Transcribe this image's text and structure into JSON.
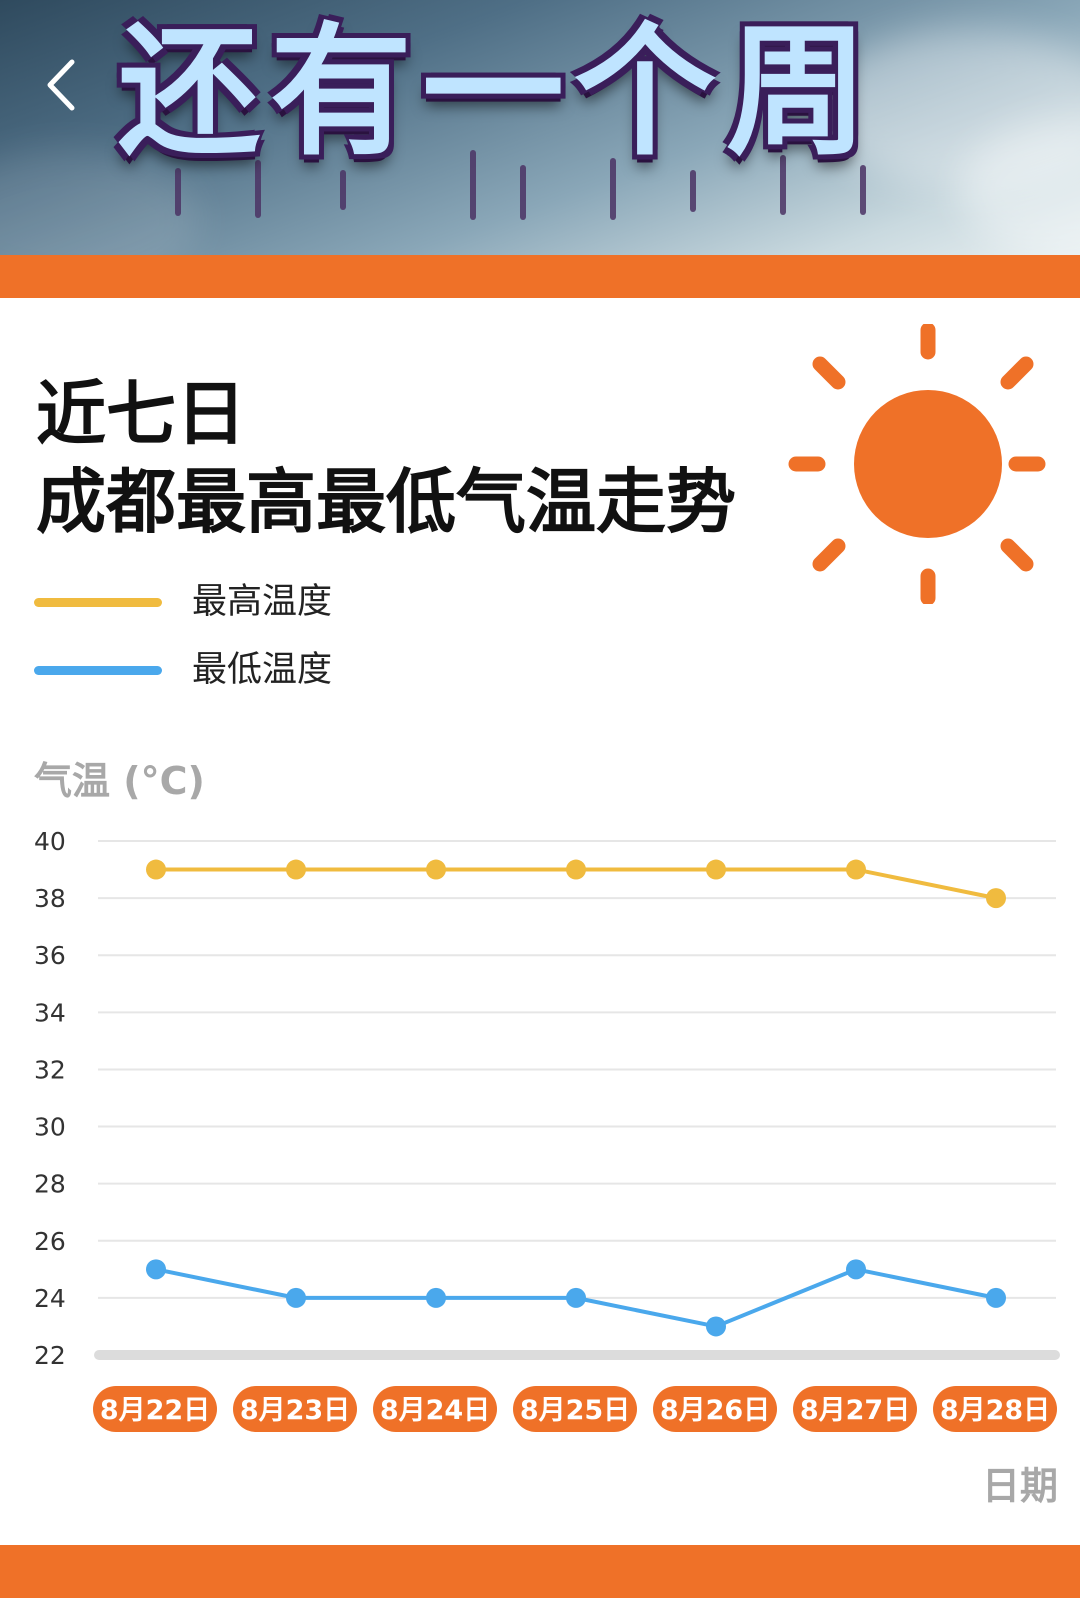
{
  "banner": {
    "title": "还有一个周"
  },
  "heading": {
    "line1": "近七日",
    "line2": "成都最高最低气温走势"
  },
  "colors": {
    "accent": "#ef7128",
    "high": "#f0bb3f",
    "low": "#4aa8ec",
    "grid": "#e6e6e6"
  },
  "icons": {
    "back": "chevron-left-icon",
    "sun": "sun-icon"
  },
  "chart_data": {
    "type": "line",
    "ylabel": "气温 (°C)",
    "xlabel": "日期",
    "ylim": [
      22,
      40
    ],
    "yticks": [
      "40",
      "38",
      "36",
      "34",
      "32",
      "30",
      "28",
      "26",
      "24",
      "22"
    ],
    "categories": [
      "8月22日",
      "8月23日",
      "8月24日",
      "8月25日",
      "8月26日",
      "8月27日",
      "8月28日"
    ],
    "series": [
      {
        "name": "最高温度",
        "values": [
          39,
          39,
          39,
          39,
          39,
          39,
          38
        ]
      },
      {
        "name": "最低温度",
        "values": [
          25,
          24,
          24,
          24,
          23,
          25,
          24
        ]
      }
    ],
    "grid": true,
    "legend": "top-left"
  }
}
